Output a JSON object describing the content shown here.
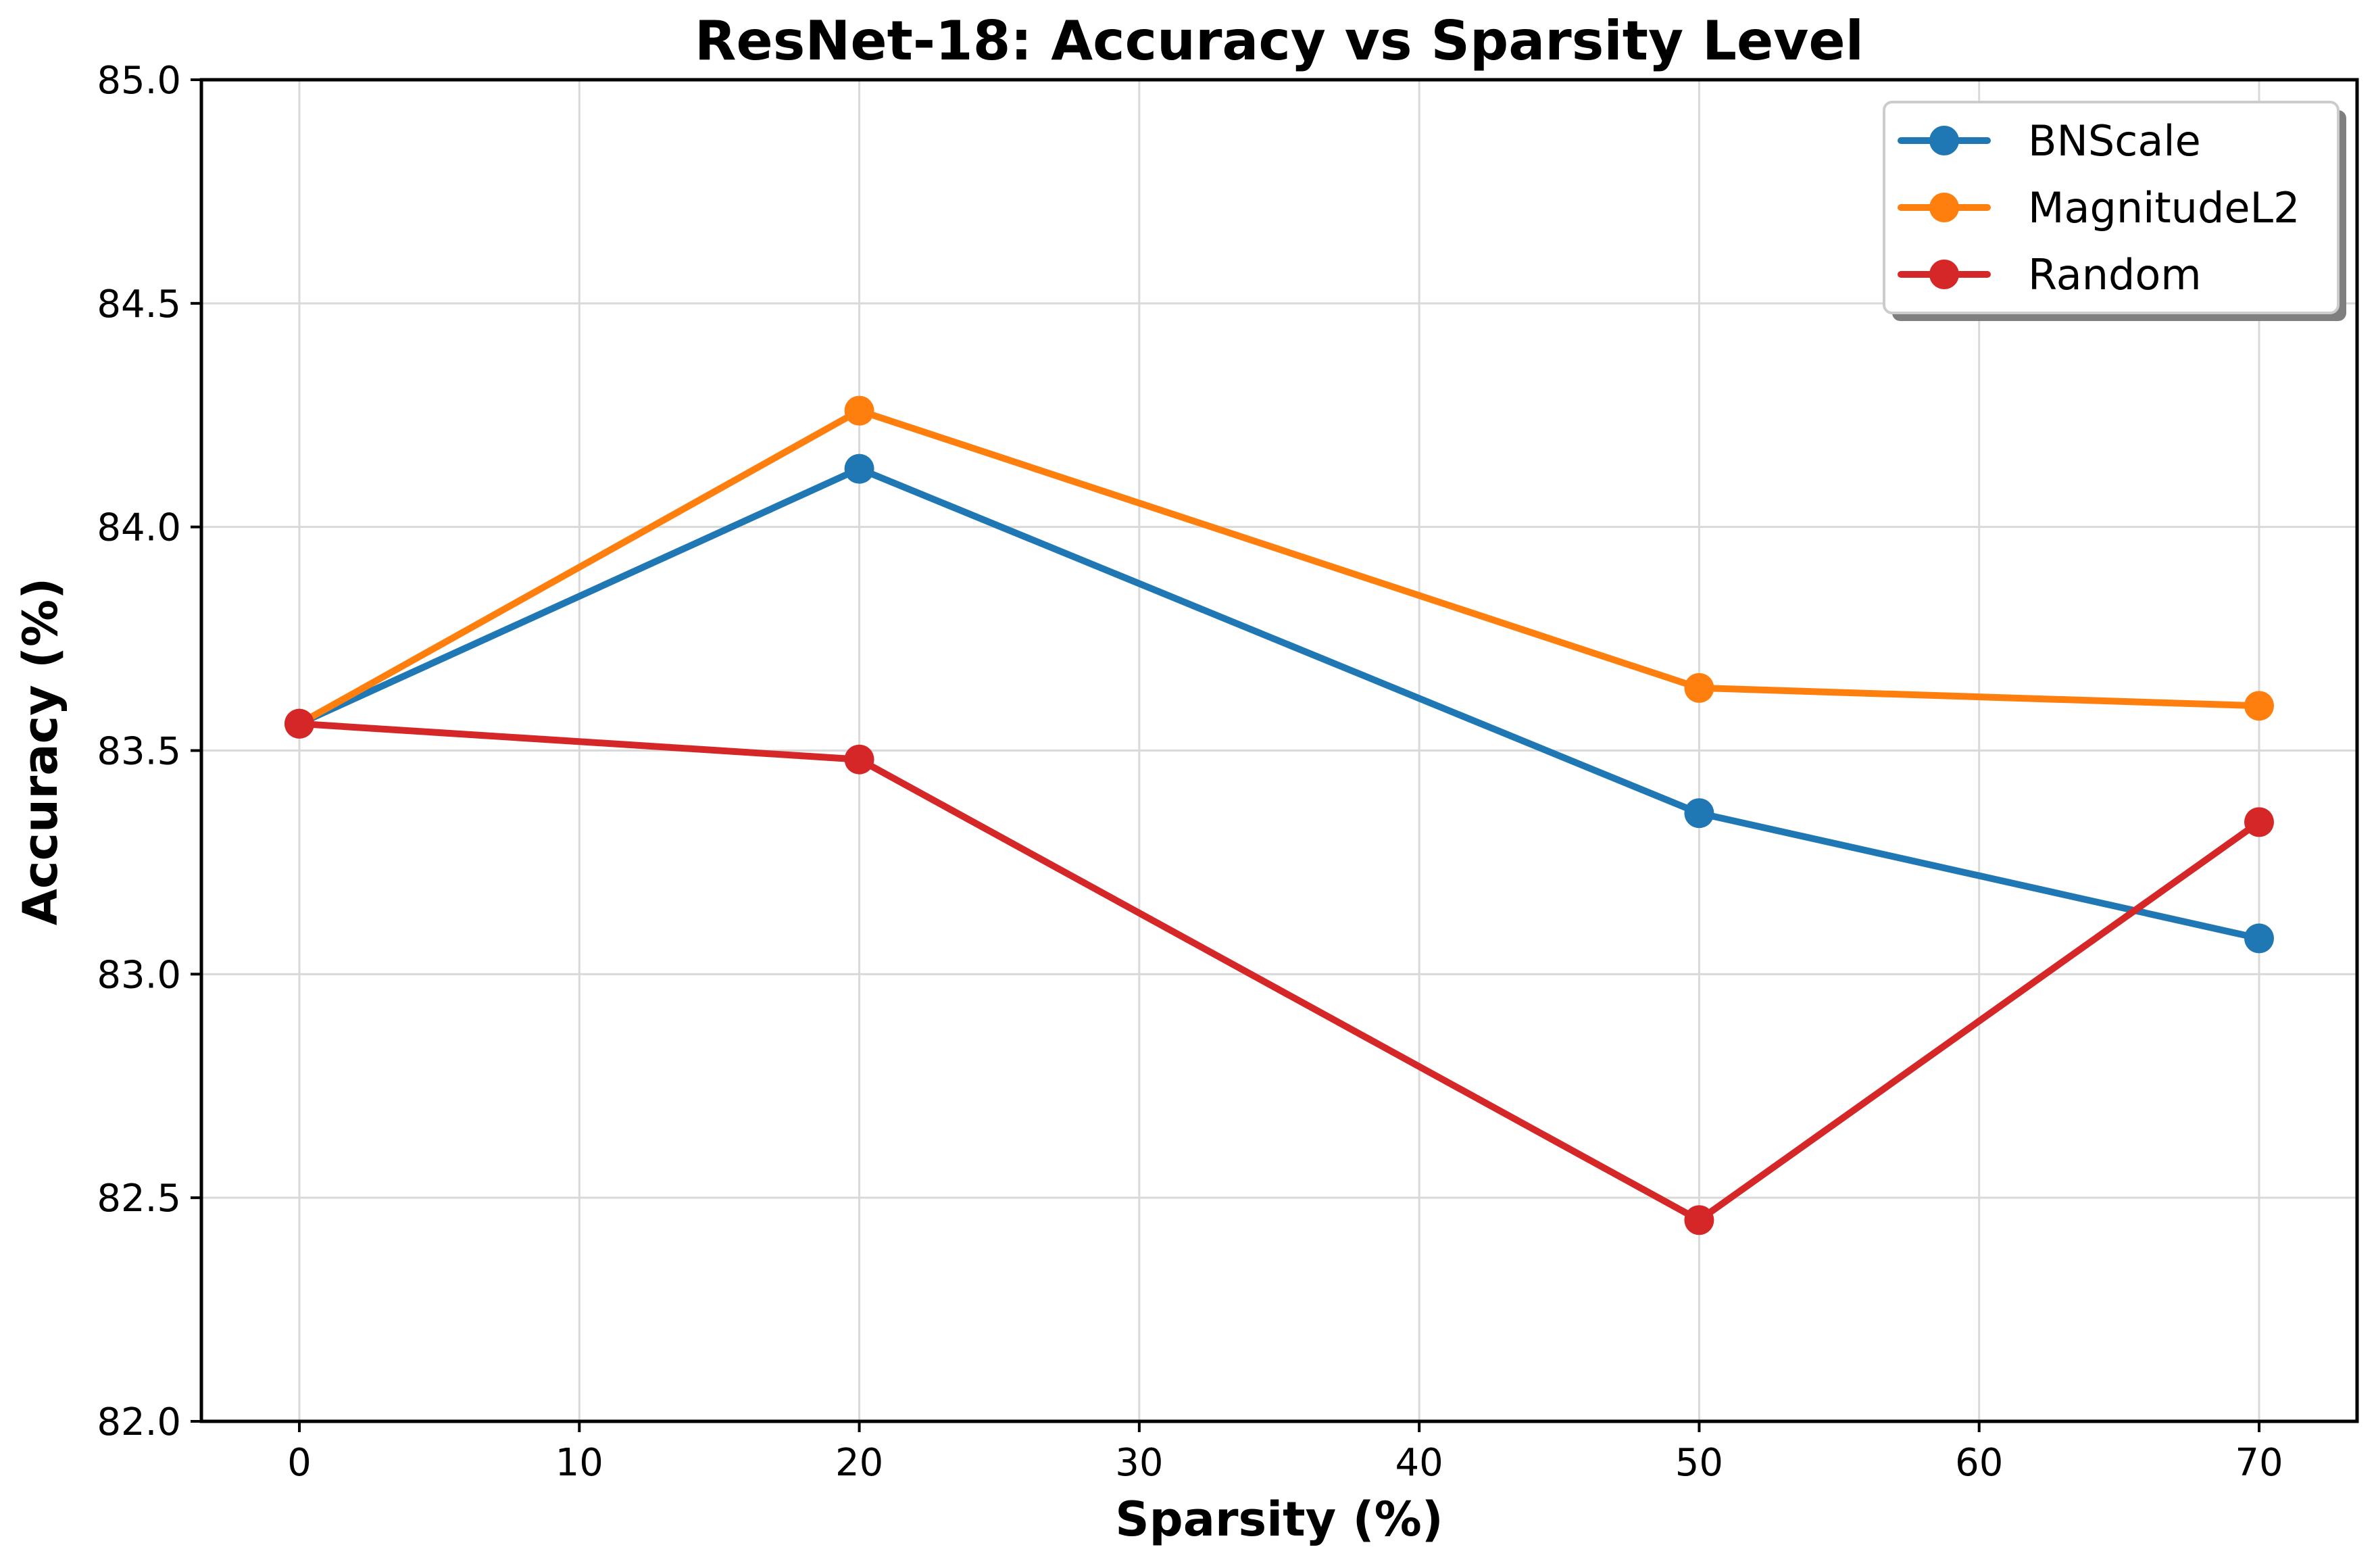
{
  "chart_data": {
    "type": "line",
    "title": "ResNet-18: Accuracy vs Sparsity Level",
    "xlabel": "Sparsity (%)",
    "ylabel": "Accuracy (%)",
    "x": [
      0,
      20,
      50,
      70
    ],
    "series": [
      {
        "name": "BNScale",
        "color": "#1f77b4",
        "values": [
          83.56,
          84.13,
          83.36,
          83.08
        ]
      },
      {
        "name": "MagnitudeL2",
        "color": "#ff7f0e",
        "values": [
          83.56,
          84.26,
          83.64,
          83.6
        ]
      },
      {
        "name": "Random",
        "color": "#d62728",
        "values": [
          83.56,
          83.48,
          82.45,
          83.34
        ]
      }
    ],
    "xlim": [
      -3.5,
      73.5
    ],
    "ylim": [
      82.0,
      85.0
    ],
    "xticks": [
      0,
      10,
      20,
      30,
      40,
      50,
      60,
      70
    ],
    "xtick_labels": [
      "0",
      "10",
      "20",
      "30",
      "40",
      "50",
      "60",
      "70"
    ],
    "yticks": [
      82.0,
      82.5,
      83.0,
      83.5,
      84.0,
      84.5,
      85.0
    ],
    "ytick_labels": [
      "82.0",
      "82.5",
      "83.0",
      "83.5",
      "84.0",
      "84.5",
      "85.0"
    ],
    "grid": true,
    "legend_position": "top-right",
    "marker": "circle"
  }
}
